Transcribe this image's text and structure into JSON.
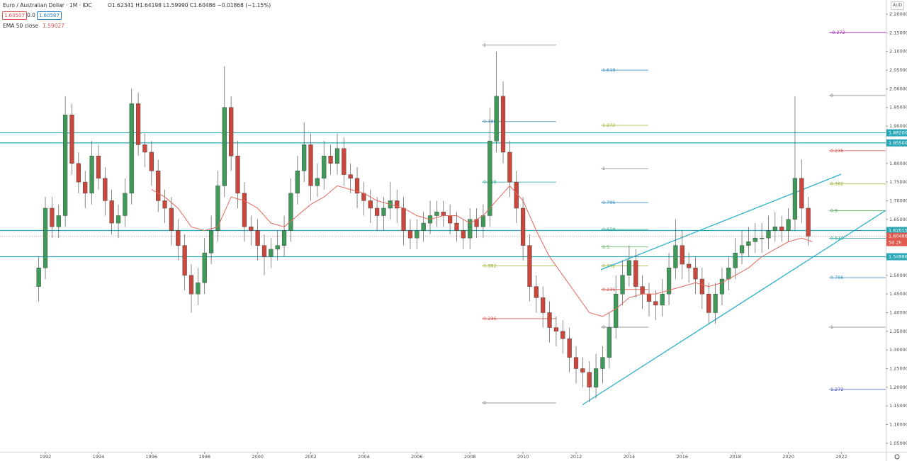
{
  "chart_data": {
    "type": "candlestick",
    "header": {
      "symbol": "Euro / Australian Dollar · 1M · IDC",
      "ohlc": "O1.62341 H1.64198 L1.59990 C1.60486 −0.01868 (−1.15%)",
      "bid": "1.60507",
      "spread": "0.0",
      "ask": "1.60587",
      "indicator": "EMA 50 close",
      "indicator_value": "1.59027",
      "currency": "AUD"
    },
    "up_color": "#3f9a5a",
    "down_color": "#c9473c",
    "xlim": [
      1990.29,
      2023.67
    ],
    "xticks": [
      1992,
      1994,
      1996,
      1998,
      2000,
      2002,
      2004,
      2006,
      2008,
      2010,
      2012,
      2014,
      2016,
      2018,
      2020,
      2022
    ],
    "ylim": [
      1.027,
      2.238
    ],
    "yticks": [
      {
        "value": 1.05,
        "label": "1.05000"
      },
      {
        "value": 1.1,
        "label": "1.10000"
      },
      {
        "value": 1.15,
        "label": "1.15000"
      },
      {
        "value": 1.2,
        "label": "1.20000"
      },
      {
        "value": 1.25,
        "label": "1.25000"
      },
      {
        "value": 1.3,
        "label": "1.30000"
      },
      {
        "value": 1.35,
        "label": "1.35000"
      },
      {
        "value": 1.4,
        "label": "1.40000"
      },
      {
        "value": 1.45,
        "label": "1.45000"
      },
      {
        "value": 1.5,
        "label": "1.50000"
      },
      {
        "value": 1.55,
        "label": "1.55000"
      },
      {
        "value": 1.6,
        "label": "1.60000"
      },
      {
        "value": 1.65,
        "label": "1.65000"
      },
      {
        "value": 1.7,
        "label": "1.70000"
      },
      {
        "value": 1.75,
        "label": "1.75000"
      },
      {
        "value": 1.8,
        "label": "1.80000"
      },
      {
        "value": 1.85,
        "label": "1.85000"
      },
      {
        "value": 1.9,
        "label": "1.90000"
      },
      {
        "value": 1.95,
        "label": "1.95000"
      },
      {
        "value": 2.0,
        "label": "2.00000"
      },
      {
        "value": 2.05,
        "label": "2.05000"
      },
      {
        "value": 2.1,
        "label": "2.10000"
      },
      {
        "value": 2.15,
        "label": "2.15000"
      },
      {
        "value": 2.2,
        "label": "2.20000"
      }
    ],
    "x": [
      1991.75,
      1992,
      1992.25,
      1992.5,
      1992.75,
      1993,
      1993.25,
      1993.5,
      1993.75,
      1994,
      1994.25,
      1994.5,
      1994.75,
      1995,
      1995.25,
      1995.5,
      1995.75,
      1996,
      1996.25,
      1996.5,
      1996.75,
      1997,
      1997.25,
      1997.5,
      1997.75,
      1998,
      1998.25,
      1998.5,
      1998.75,
      1999,
      1999.25,
      1999.5,
      1999.75,
      2000,
      2000.25,
      2000.5,
      2000.75,
      2001,
      2001.25,
      2001.5,
      2001.75,
      2002,
      2002.25,
      2002.5,
      2002.75,
      2003,
      2003.25,
      2003.5,
      2003.75,
      2004,
      2004.25,
      2004.5,
      2004.75,
      2005,
      2005.25,
      2005.5,
      2005.75,
      2006,
      2006.25,
      2006.5,
      2006.75,
      2007,
      2007.25,
      2007.5,
      2007.75,
      2008,
      2008.25,
      2008.5,
      2008.75,
      2009,
      2009.25,
      2009.5,
      2009.75,
      2010,
      2010.25,
      2010.5,
      2010.75,
      2011,
      2011.25,
      2011.5,
      2011.75,
      2012,
      2012.25,
      2012.5,
      2012.75,
      2013,
      2013.25,
      2013.5,
      2013.75,
      2014,
      2014.25,
      2014.5,
      2014.75,
      2015,
      2015.25,
      2015.5,
      2015.75,
      2016,
      2016.25,
      2016.5,
      2016.75,
      2017,
      2017.25,
      2017.5,
      2017.75,
      2018,
      2018.25,
      2018.5,
      2018.75,
      2019,
      2019.25,
      2019.5,
      2019.75,
      2020,
      2020.25,
      2020.5,
      2020.75
    ],
    "open": [
      1.47,
      1.52,
      1.68,
      1.63,
      1.66,
      1.93,
      1.8,
      1.75,
      1.72,
      1.82,
      1.76,
      1.7,
      1.64,
      1.66,
      1.72,
      1.96,
      1.85,
      1.83,
      1.78,
      1.7,
      1.68,
      1.62,
      1.58,
      1.5,
      1.45,
      1.48,
      1.56,
      1.62,
      1.74,
      1.95,
      1.82,
      1.72,
      1.63,
      1.62,
      1.58,
      1.55,
      1.57,
      1.58,
      1.62,
      1.72,
      1.78,
      1.85,
      1.74,
      1.76,
      1.82,
      1.8,
      1.84,
      1.77,
      1.76,
      1.72,
      1.7,
      1.68,
      1.66,
      1.68,
      1.7,
      1.68,
      1.62,
      1.6,
      1.62,
      1.64,
      1.66,
      1.67,
      1.66,
      1.64,
      1.62,
      1.6,
      1.65,
      1.63,
      1.66,
      1.86,
      1.98,
      1.83,
      1.75,
      1.68,
      1.58,
      1.47,
      1.44,
      1.4,
      1.36,
      1.35,
      1.33,
      1.28,
      1.25,
      1.24,
      1.2,
      1.25,
      1.28,
      1.36,
      1.45,
      1.5,
      1.54,
      1.47,
      1.45,
      1.43,
      1.42,
      1.45,
      1.52,
      1.58,
      1.53,
      1.52,
      1.49,
      1.45,
      1.4,
      1.45,
      1.49,
      1.52,
      1.56,
      1.58,
      1.59,
      1.6,
      1.6,
      1.62,
      1.63,
      1.62,
      1.65,
      1.76,
      1.68
    ],
    "high": [
      1.55,
      1.71,
      1.71,
      1.69,
      1.98,
      1.96,
      1.83,
      1.78,
      1.86,
      1.85,
      1.79,
      1.73,
      1.69,
      1.76,
      2.0,
      1.99,
      1.88,
      1.86,
      1.81,
      1.73,
      1.71,
      1.65,
      1.61,
      1.53,
      1.52,
      1.6,
      1.66,
      1.78,
      2.06,
      1.98,
      1.86,
      1.75,
      1.66,
      1.65,
      1.61,
      1.6,
      1.62,
      1.66,
      1.76,
      1.82,
      1.91,
      1.88,
      1.8,
      1.86,
      1.85,
      1.88,
      1.87,
      1.8,
      1.79,
      1.75,
      1.73,
      1.71,
      1.71,
      1.75,
      1.73,
      1.71,
      1.65,
      1.65,
      1.67,
      1.7,
      1.7,
      1.7,
      1.69,
      1.67,
      1.65,
      1.68,
      1.68,
      1.69,
      1.95,
      2.1,
      2.02,
      1.86,
      1.78,
      1.71,
      1.61,
      1.5,
      1.47,
      1.43,
      1.39,
      1.38,
      1.36,
      1.31,
      1.28,
      1.27,
      1.29,
      1.31,
      1.4,
      1.5,
      1.54,
      1.58,
      1.57,
      1.5,
      1.48,
      1.46,
      1.49,
      1.56,
      1.65,
      1.62,
      1.56,
      1.55,
      1.52,
      1.48,
      1.48,
      1.52,
      1.55,
      1.6,
      1.62,
      1.63,
      1.64,
      1.64,
      1.66,
      1.67,
      1.66,
      1.68,
      1.98,
      1.81,
      1.71
    ],
    "low": [
      1.43,
      1.49,
      1.6,
      1.6,
      1.63,
      1.77,
      1.72,
      1.68,
      1.69,
      1.73,
      1.66,
      1.61,
      1.6,
      1.63,
      1.69,
      1.82,
      1.79,
      1.74,
      1.67,
      1.64,
      1.58,
      1.54,
      1.46,
      1.4,
      1.42,
      1.45,
      1.53,
      1.59,
      1.71,
      1.78,
      1.68,
      1.59,
      1.58,
      1.54,
      1.5,
      1.52,
      1.54,
      1.55,
      1.59,
      1.69,
      1.75,
      1.7,
      1.71,
      1.73,
      1.77,
      1.77,
      1.74,
      1.72,
      1.68,
      1.66,
      1.64,
      1.62,
      1.62,
      1.65,
      1.64,
      1.58,
      1.57,
      1.57,
      1.59,
      1.61,
      1.63,
      1.63,
      1.61,
      1.59,
      1.57,
      1.57,
      1.6,
      1.6,
      1.63,
      1.83,
      1.8,
      1.71,
      1.64,
      1.54,
      1.43,
      1.4,
      1.36,
      1.32,
      1.31,
      1.29,
      1.24,
      1.21,
      1.2,
      1.16,
      1.17,
      1.21,
      1.25,
      1.33,
      1.42,
      1.47,
      1.44,
      1.41,
      1.39,
      1.38,
      1.39,
      1.42,
      1.49,
      1.49,
      1.48,
      1.45,
      1.41,
      1.37,
      1.37,
      1.42,
      1.46,
      1.49,
      1.53,
      1.55,
      1.56,
      1.56,
      1.57,
      1.59,
      1.59,
      1.59,
      1.62,
      1.64,
      1.58
    ],
    "close": [
      1.52,
      1.68,
      1.63,
      1.66,
      1.93,
      1.8,
      1.75,
      1.72,
      1.82,
      1.76,
      1.7,
      1.64,
      1.66,
      1.72,
      1.96,
      1.85,
      1.83,
      1.78,
      1.7,
      1.68,
      1.62,
      1.58,
      1.5,
      1.45,
      1.48,
      1.56,
      1.62,
      1.74,
      1.95,
      1.82,
      1.72,
      1.63,
      1.62,
      1.58,
      1.55,
      1.57,
      1.58,
      1.62,
      1.72,
      1.78,
      1.85,
      1.74,
      1.76,
      1.82,
      1.8,
      1.84,
      1.77,
      1.76,
      1.72,
      1.7,
      1.68,
      1.66,
      1.68,
      1.7,
      1.68,
      1.62,
      1.6,
      1.62,
      1.64,
      1.66,
      1.67,
      1.66,
      1.64,
      1.62,
      1.6,
      1.65,
      1.63,
      1.66,
      1.86,
      1.98,
      1.83,
      1.75,
      1.68,
      1.58,
      1.47,
      1.44,
      1.4,
      1.36,
      1.35,
      1.33,
      1.28,
      1.25,
      1.24,
      1.2,
      1.25,
      1.28,
      1.36,
      1.45,
      1.5,
      1.54,
      1.47,
      1.45,
      1.43,
      1.42,
      1.45,
      1.52,
      1.58,
      1.53,
      1.52,
      1.49,
      1.45,
      1.4,
      1.45,
      1.49,
      1.52,
      1.56,
      1.58,
      1.59,
      1.6,
      1.6,
      1.62,
      1.63,
      1.62,
      1.65,
      1.76,
      1.68,
      1.60486
    ],
    "ema": {
      "color": "#e0685c",
      "x": [
        1996,
        1996.5,
        1997,
        1997.5,
        1998,
        1998.5,
        1999,
        1999.5,
        2000,
        2000.5,
        2001,
        2001.5,
        2002,
        2002.5,
        2003,
        2003.5,
        2004,
        2004.5,
        2005,
        2005.5,
        2006,
        2006.5,
        2007,
        2007.5,
        2008,
        2008.5,
        2009,
        2009.5,
        2010,
        2010.5,
        2011,
        2011.5,
        2012,
        2012.5,
        2013,
        2013.5,
        2014,
        2014.5,
        2015,
        2015.5,
        2016,
        2016.5,
        2017,
        2017.5,
        2018,
        2018.5,
        2019,
        2019.5,
        2020,
        2020.5,
        2020.9
      ],
      "values": [
        1.73,
        1.71,
        1.68,
        1.63,
        1.62,
        1.63,
        1.71,
        1.7,
        1.68,
        1.64,
        1.63,
        1.66,
        1.69,
        1.71,
        1.74,
        1.73,
        1.72,
        1.7,
        1.69,
        1.68,
        1.66,
        1.65,
        1.66,
        1.66,
        1.64,
        1.66,
        1.7,
        1.74,
        1.7,
        1.62,
        1.55,
        1.5,
        1.45,
        1.4,
        1.39,
        1.41,
        1.44,
        1.45,
        1.45,
        1.46,
        1.47,
        1.48,
        1.47,
        1.48,
        1.5,
        1.52,
        1.55,
        1.57,
        1.59,
        1.6,
        1.59
      ]
    },
    "levels": {
      "color": "#2aa8b8",
      "values": [
        {
          "value": 1.882,
          "label": "1.88200"
        },
        {
          "value": 1.855,
          "label": "1.85500"
        },
        {
          "value": 1.62015,
          "label": "1.62015"
        },
        {
          "value": 1.54986,
          "label": "1.54986"
        }
      ]
    },
    "last_price": 1.60486,
    "countdown": "5d 2h",
    "last_color": "#e05a4f",
    "trend_lines": [
      {
        "color": "#2ab0c8",
        "x": [
          2012.93,
          2021.99
        ],
        "y": [
          1.515,
          1.771
        ]
      },
      {
        "color": "#2ab0c8",
        "x": [
          2012.24,
          2023.67
        ],
        "y": [
          1.153,
          1.674
        ]
      }
    ],
    "fib_groups": [
      {
        "x0": 2008.45,
        "x1": 2011.25,
        "levels": [
          {
            "ratio": 1,
            "price": 2.117,
            "color": "#787b86"
          },
          {
            "ratio": 0.786,
            "price": 1.912,
            "color": "#3a8fc0"
          },
          {
            "ratio": 0.618,
            "price": 1.75,
            "color": "#26a69a"
          },
          {
            "ratio": 0.382,
            "price": 1.525,
            "color": "#9ab02a"
          },
          {
            "ratio": 0.236,
            "price": 1.384,
            "color": "#d9534f"
          },
          {
            "ratio": 0,
            "price": 1.158,
            "color": "#787b86"
          }
        ]
      },
      {
        "x0": 2012.93,
        "x1": 2014.72,
        "levels": [
          {
            "ratio": 1.618,
            "price": 2.05,
            "color": "#3a8fc0"
          },
          {
            "ratio": 1.272,
            "price": 1.902,
            "color": "#9ab02a"
          },
          {
            "ratio": 1,
            "price": 1.786,
            "color": "#787b86"
          },
          {
            "ratio": 0.786,
            "price": 1.695,
            "color": "#3a8fc0"
          },
          {
            "ratio": 0.618,
            "price": 1.623,
            "color": "#26a69a"
          },
          {
            "ratio": 0.5,
            "price": 1.576,
            "color": "#4caf50"
          },
          {
            "ratio": 0.382,
            "price": 1.525,
            "color": "#9ab02a"
          },
          {
            "ratio": 0.236,
            "price": 1.462,
            "color": "#d9534f"
          },
          {
            "ratio": 0,
            "price": 1.361,
            "color": "#787b86"
          }
        ]
      },
      {
        "x0": 2021.53,
        "x1": 2023.67,
        "levels": [
          {
            "ratio": -0.272,
            "price": 2.151,
            "color": "#9c27b0"
          },
          {
            "ratio": 0,
            "price": 1.982,
            "color": "#787b86"
          },
          {
            "ratio": 0.236,
            "price": 1.834,
            "color": "#d9534f"
          },
          {
            "ratio": 0.382,
            "price": 1.745,
            "color": "#9ab02a"
          },
          {
            "ratio": 0.5,
            "price": 1.673,
            "color": "#4caf50"
          },
          {
            "ratio": 0.618,
            "price": 1.599,
            "color": "#26a69a"
          },
          {
            "ratio": 0.786,
            "price": 1.494,
            "color": "#3a8fc0"
          },
          {
            "ratio": 1,
            "price": 1.361,
            "color": "#787b86"
          },
          {
            "ratio": 1.272,
            "price": 1.194,
            "color": "#3f51b5"
          }
        ]
      }
    ]
  }
}
